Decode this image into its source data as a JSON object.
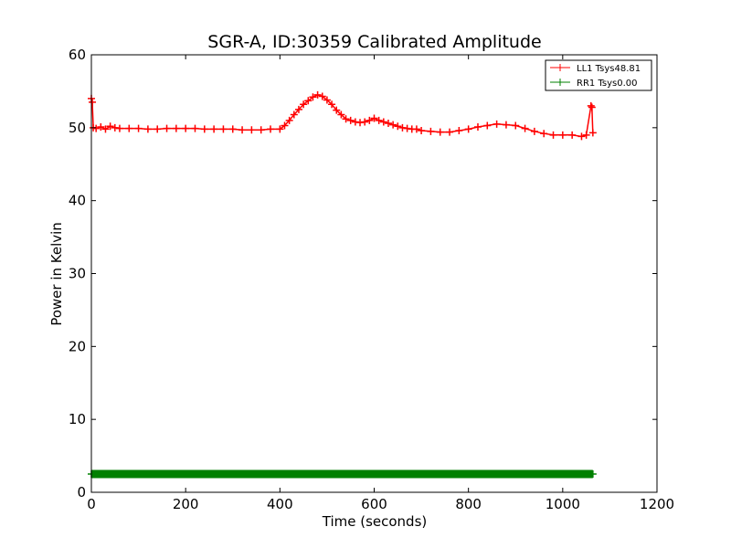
{
  "chart_data": {
    "type": "line",
    "title": "SGR-A, ID:30359 Calibrated Amplitude",
    "xlabel": "Time (seconds)",
    "ylabel": "Power in Kelvin",
    "xlim": [
      0,
      1200
    ],
    "ylim": [
      0,
      60
    ],
    "xticks": [
      0,
      200,
      400,
      600,
      800,
      1000,
      1200
    ],
    "yticks": [
      0,
      10,
      20,
      30,
      40,
      50,
      60
    ],
    "grid": false,
    "legend_position": "top-right",
    "marker": "+",
    "series": [
      {
        "name": "LL1 Tsys48.81",
        "color": "#ff0000",
        "x": [
          0,
          2,
          4,
          10,
          20,
          30,
          40,
          50,
          60,
          80,
          100,
          120,
          140,
          160,
          180,
          200,
          220,
          240,
          260,
          280,
          300,
          320,
          340,
          360,
          380,
          400,
          410,
          420,
          430,
          440,
          450,
          460,
          470,
          480,
          490,
          500,
          510,
          520,
          530,
          540,
          550,
          560,
          570,
          580,
          590,
          600,
          610,
          620,
          630,
          640,
          650,
          660,
          670,
          680,
          690,
          700,
          720,
          740,
          760,
          780,
          800,
          820,
          840,
          860,
          880,
          900,
          920,
          940,
          960,
          980,
          1000,
          1020,
          1040,
          1050,
          1060,
          1062,
          1064
        ],
        "values": [
          54.0,
          53.5,
          50.0,
          49.9,
          50.1,
          49.8,
          50.2,
          50.0,
          49.9,
          49.9,
          49.9,
          49.8,
          49.8,
          49.9,
          49.9,
          49.9,
          49.9,
          49.8,
          49.8,
          49.8,
          49.8,
          49.7,
          49.7,
          49.7,
          49.8,
          49.8,
          50.3,
          51.0,
          51.8,
          52.5,
          53.2,
          53.7,
          54.2,
          54.5,
          54.3,
          53.8,
          53.2,
          52.4,
          51.8,
          51.2,
          51.0,
          50.8,
          50.7,
          50.8,
          51.0,
          51.3,
          51.0,
          50.8,
          50.6,
          50.4,
          50.2,
          50.0,
          49.9,
          49.8,
          49.8,
          49.6,
          49.5,
          49.4,
          49.4,
          49.6,
          49.8,
          50.1,
          50.3,
          50.5,
          50.4,
          50.3,
          49.9,
          49.5,
          49.2,
          49.0,
          49.0,
          49.0,
          48.8,
          49.0,
          53.0,
          52.8,
          49.3
        ]
      },
      {
        "name": "RR1 Tsys0.00",
        "color": "#008000",
        "x": [
          0,
          100,
          200,
          300,
          400,
          500,
          600,
          700,
          800,
          900,
          1000,
          1064
        ],
        "values": [
          2.5,
          2.5,
          2.5,
          2.5,
          2.5,
          2.5,
          2.5,
          2.5,
          2.5,
          2.5,
          2.5,
          2.5
        ]
      }
    ]
  }
}
